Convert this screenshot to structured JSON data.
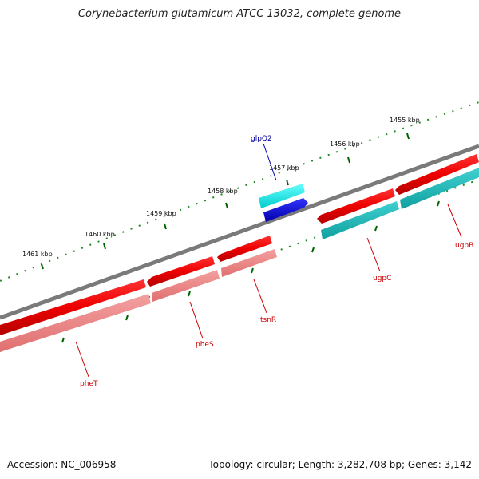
{
  "title": "Corynebacterium glutamicum ATCC 13032, complete genome",
  "footer": {
    "accession": "Accession: NC_006958",
    "topology": "Topology: circular; Length: 3,282,708 bp; Genes: 3,142"
  },
  "colors": {
    "backbone": "#808080",
    "gene_forward": "#ff0000",
    "gene_forward_shadow": "#f08080",
    "gene_highlight": "#00ffff",
    "gene_highlight_dark": "#0000ff",
    "gene_reverse_teal": "#20b2aa",
    "tick": "#006400",
    "label_red": "#cc0000",
    "label_blue": "#000099"
  },
  "ticks": [
    "1461 kbp",
    "1460 kbp",
    "1459 kbp",
    "1458 kbp",
    "1457 kbp",
    "1456 kbp",
    "1455 kbp"
  ],
  "genes": [
    {
      "name": "pheT",
      "color": "red"
    },
    {
      "name": "pheS",
      "color": "red"
    },
    {
      "name": "tsnR",
      "color": "red"
    },
    {
      "name": "glpQ2",
      "color": "blue"
    },
    {
      "name": "ugpC",
      "color": "red"
    },
    {
      "name": "ugpB",
      "color": "red"
    }
  ]
}
